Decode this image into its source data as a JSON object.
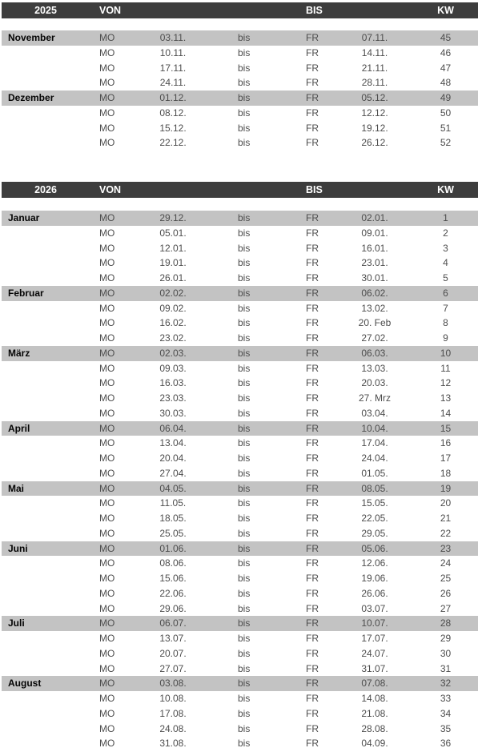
{
  "document_type": "calendar-week-table",
  "colors": {
    "header_bg": "#3d3d3d",
    "header_fg": "#ffffff",
    "band_bg": "#c3c3c3",
    "data_fg": "#4d4d4d",
    "month_fg": "#050505"
  },
  "tables": [
    {
      "year": "2025",
      "headers": {
        "von": "VON",
        "bis": "BIS",
        "kw": "KW"
      },
      "rows": [
        {
          "month": "November",
          "day_from": "MO",
          "date_from": "03.11.",
          "sep": "bis",
          "day_to": "FR",
          "date_to": "07.11.",
          "kw": "45",
          "band": true
        },
        {
          "month": "",
          "day_from": "MO",
          "date_from": "10.11.",
          "sep": "bis",
          "day_to": "FR",
          "date_to": "14.11.",
          "kw": "46",
          "band": false
        },
        {
          "month": "",
          "day_from": "MO",
          "date_from": "17.11.",
          "sep": "bis",
          "day_to": "FR",
          "date_to": "21.11.",
          "kw": "47",
          "band": false
        },
        {
          "month": "",
          "day_from": "MO",
          "date_from": "24.11.",
          "sep": "bis",
          "day_to": "FR",
          "date_to": "28.11.",
          "kw": "48",
          "band": false
        },
        {
          "month": "Dezember",
          "day_from": "MO",
          "date_from": "01.12.",
          "sep": "bis",
          "day_to": "FR",
          "date_to": "05.12.",
          "kw": "49",
          "band": true
        },
        {
          "month": "",
          "day_from": "MO",
          "date_from": "08.12.",
          "sep": "bis",
          "day_to": "FR",
          "date_to": "12.12.",
          "kw": "50",
          "band": false
        },
        {
          "month": "",
          "day_from": "MO",
          "date_from": "15.12.",
          "sep": "bis",
          "day_to": "FR",
          "date_to": "19.12.",
          "kw": "51",
          "band": false
        },
        {
          "month": "",
          "day_from": "MO",
          "date_from": "22.12.",
          "sep": "bis",
          "day_to": "FR",
          "date_to": "26.12.",
          "kw": "52",
          "band": false
        }
      ]
    },
    {
      "year": "2026",
      "headers": {
        "von": "VON",
        "bis": "BIS",
        "kw": "KW"
      },
      "rows": [
        {
          "month": "Januar",
          "day_from": "MO",
          "date_from": "29.12.",
          "sep": "bis",
          "day_to": "FR",
          "date_to": "02.01.",
          "kw": "1",
          "band": true
        },
        {
          "month": "",
          "day_from": "MO",
          "date_from": "05.01.",
          "sep": "bis",
          "day_to": "FR",
          "date_to": "09.01.",
          "kw": "2",
          "band": false
        },
        {
          "month": "",
          "day_from": "MO",
          "date_from": "12.01.",
          "sep": "bis",
          "day_to": "FR",
          "date_to": "16.01.",
          "kw": "3",
          "band": false
        },
        {
          "month": "",
          "day_from": "MO",
          "date_from": "19.01.",
          "sep": "bis",
          "day_to": "FR",
          "date_to": "23.01.",
          "kw": "4",
          "band": false
        },
        {
          "month": "",
          "day_from": "MO",
          "date_from": "26.01.",
          "sep": "bis",
          "day_to": "FR",
          "date_to": "30.01.",
          "kw": "5",
          "band": false
        },
        {
          "month": "Februar",
          "day_from": "MO",
          "date_from": "02.02.",
          "sep": "bis",
          "day_to": "FR",
          "date_to": "06.02.",
          "kw": "6",
          "band": true
        },
        {
          "month": "",
          "day_from": "MO",
          "date_from": "09.02.",
          "sep": "bis",
          "day_to": "FR",
          "date_to": "13.02.",
          "kw": "7",
          "band": false
        },
        {
          "month": "",
          "day_from": "MO",
          "date_from": "16.02.",
          "sep": "bis",
          "day_to": "FR",
          "date_to": "20. Feb",
          "kw": "8",
          "band": false
        },
        {
          "month": "",
          "day_from": "MO",
          "date_from": "23.02.",
          "sep": "bis",
          "day_to": "FR",
          "date_to": "27.02.",
          "kw": "9",
          "band": false
        },
        {
          "month": "März",
          "day_from": "MO",
          "date_from": "02.03.",
          "sep": "bis",
          "day_to": "FR",
          "date_to": "06.03.",
          "kw": "10",
          "band": true
        },
        {
          "month": "",
          "day_from": "MO",
          "date_from": "09.03.",
          "sep": "bis",
          "day_to": "FR",
          "date_to": "13.03.",
          "kw": "11",
          "band": false
        },
        {
          "month": "",
          "day_from": "MO",
          "date_from": "16.03.",
          "sep": "bis",
          "day_to": "FR",
          "date_to": "20.03.",
          "kw": "12",
          "band": false
        },
        {
          "month": "",
          "day_from": "MO",
          "date_from": "23.03.",
          "sep": "bis",
          "day_to": "FR",
          "date_to": "27. Mrz",
          "kw": "13",
          "band": false
        },
        {
          "month": "",
          "day_from": "MO",
          "date_from": "30.03.",
          "sep": "bis",
          "day_to": "FR",
          "date_to": "03.04.",
          "kw": "14",
          "band": false
        },
        {
          "month": "April",
          "day_from": "MO",
          "date_from": "06.04.",
          "sep": "bis",
          "day_to": "FR",
          "date_to": "10.04.",
          "kw": "15",
          "band": true
        },
        {
          "month": "",
          "day_from": "MO",
          "date_from": "13.04.",
          "sep": "bis",
          "day_to": "FR",
          "date_to": "17.04.",
          "kw": "16",
          "band": false
        },
        {
          "month": "",
          "day_from": "MO",
          "date_from": "20.04.",
          "sep": "bis",
          "day_to": "FR",
          "date_to": "24.04.",
          "kw": "17",
          "band": false
        },
        {
          "month": "",
          "day_from": "MO",
          "date_from": "27.04.",
          "sep": "bis",
          "day_to": "FR",
          "date_to": "01.05.",
          "kw": "18",
          "band": false
        },
        {
          "month": "Mai",
          "day_from": "MO",
          "date_from": "04.05.",
          "sep": "bis",
          "day_to": "FR",
          "date_to": "08.05.",
          "kw": "19",
          "band": true
        },
        {
          "month": "",
          "day_from": "MO",
          "date_from": "11.05.",
          "sep": "bis",
          "day_to": "FR",
          "date_to": "15.05.",
          "kw": "20",
          "band": false
        },
        {
          "month": "",
          "day_from": "MO",
          "date_from": "18.05.",
          "sep": "bis",
          "day_to": "FR",
          "date_to": "22.05.",
          "kw": "21",
          "band": false
        },
        {
          "month": "",
          "day_from": "MO",
          "date_from": "25.05.",
          "sep": "bis",
          "day_to": "FR",
          "date_to": "29.05.",
          "kw": "22",
          "band": false
        },
        {
          "month": "Juni",
          "day_from": "MO",
          "date_from": "01.06.",
          "sep": "bis",
          "day_to": "FR",
          "date_to": "05.06.",
          "kw": "23",
          "band": true
        },
        {
          "month": "",
          "day_from": "MO",
          "date_from": "08.06.",
          "sep": "bis",
          "day_to": "FR",
          "date_to": "12.06.",
          "kw": "24",
          "band": false
        },
        {
          "month": "",
          "day_from": "MO",
          "date_from": "15.06.",
          "sep": "bis",
          "day_to": "FR",
          "date_to": "19.06.",
          "kw": "25",
          "band": false
        },
        {
          "month": "",
          "day_from": "MO",
          "date_from": "22.06.",
          "sep": "bis",
          "day_to": "FR",
          "date_to": "26.06.",
          "kw": "26",
          "band": false
        },
        {
          "month": "",
          "day_from": "MO",
          "date_from": "29.06.",
          "sep": "bis",
          "day_to": "FR",
          "date_to": "03.07.",
          "kw": "27",
          "band": false
        },
        {
          "month": "Juli",
          "day_from": "MO",
          "date_from": "06.07.",
          "sep": "bis",
          "day_to": "FR",
          "date_to": "10.07.",
          "kw": "28",
          "band": true
        },
        {
          "month": "",
          "day_from": "MO",
          "date_from": "13.07.",
          "sep": "bis",
          "day_to": "FR",
          "date_to": "17.07.",
          "kw": "29",
          "band": false
        },
        {
          "month": "",
          "day_from": "MO",
          "date_from": "20.07.",
          "sep": "bis",
          "day_to": "FR",
          "date_to": "24.07.",
          "kw": "30",
          "band": false
        },
        {
          "month": "",
          "day_from": "MO",
          "date_from": "27.07.",
          "sep": "bis",
          "day_to": "FR",
          "date_to": "31.07.",
          "kw": "31",
          "band": false
        },
        {
          "month": "August",
          "day_from": "MO",
          "date_from": "03.08.",
          "sep": "bis",
          "day_to": "FR",
          "date_to": "07.08.",
          "kw": "32",
          "band": true
        },
        {
          "month": "",
          "day_from": "MO",
          "date_from": "10.08.",
          "sep": "bis",
          "day_to": "FR",
          "date_to": "14.08.",
          "kw": "33",
          "band": false
        },
        {
          "month": "",
          "day_from": "MO",
          "date_from": "17.08.",
          "sep": "bis",
          "day_to": "FR",
          "date_to": "21.08.",
          "kw": "34",
          "band": false
        },
        {
          "month": "",
          "day_from": "MO",
          "date_from": "24.08.",
          "sep": "bis",
          "day_to": "FR",
          "date_to": "28.08.",
          "kw": "35",
          "band": false
        },
        {
          "month": "",
          "day_from": "MO",
          "date_from": "31.08.",
          "sep": "bis",
          "day_to": "FR",
          "date_to": "04.09.",
          "kw": "36",
          "band": false
        }
      ]
    }
  ]
}
